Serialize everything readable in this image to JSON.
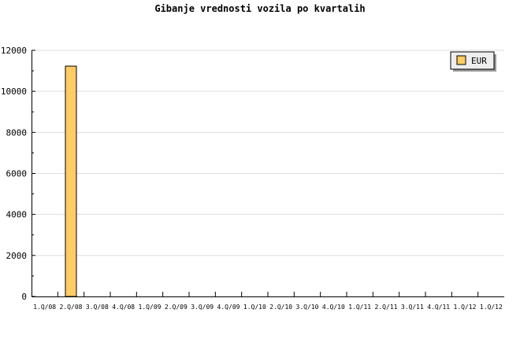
{
  "chart_data": {
    "type": "bar",
    "title": "Gibanje vrednosti vozila po kvartalih",
    "xlabel": "",
    "ylabel": "",
    "categories": [
      "1.Q/08",
      "2.Q/08",
      "3.Q/08",
      "4.Q/08",
      "1.Q/09",
      "2.Q/09",
      "3.Q/09",
      "4.Q/09",
      "1.Q/10",
      "2.Q/10",
      "3.Q/10",
      "4.Q/10",
      "1.Q/11",
      "2.Q/11",
      "3.Q/11",
      "4.Q/11",
      "1.Q/12",
      "1.Q/12"
    ],
    "series": [
      {
        "name": "EUR",
        "color": "#ffcc66",
        "values": [
          0,
          11230,
          0,
          0,
          0,
          0,
          0,
          0,
          0,
          0,
          0,
          0,
          0,
          0,
          0,
          0,
          0,
          0
        ]
      }
    ],
    "ylim": [
      0,
      12000
    ],
    "yticks": [
      0,
      2000,
      4000,
      6000,
      8000,
      10000,
      12000
    ],
    "grid": true,
    "legend": "top-right"
  }
}
